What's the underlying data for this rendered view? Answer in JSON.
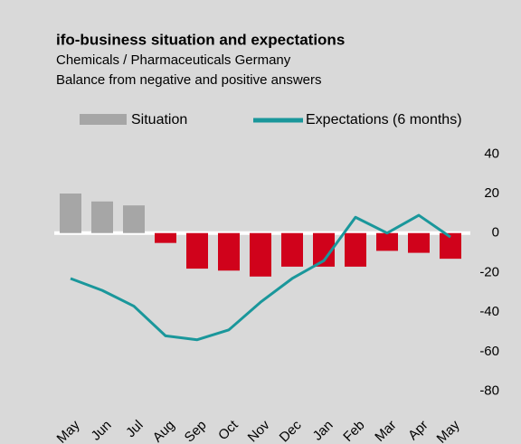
{
  "chart_data": {
    "type": "bar_line",
    "title": "ifo-business situation and expectations",
    "subtitle": [
      "Chemicals / Pharmaceuticals Germany",
      "Balance from negative and positive answers"
    ],
    "categories": [
      "May",
      "Jun",
      "Jul",
      "Aug",
      "Sep",
      "Oct",
      "Nov",
      "Dec",
      "Jan",
      "Feb",
      "Mar",
      "Apr",
      "May"
    ],
    "series": [
      {
        "name": "Situation",
        "type": "bar",
        "color": "#a6a6a6",
        "colors": [
          "#a6a6a6",
          "#a6a6a6",
          "#a6a6a6",
          "#d0021b",
          "#d0021b",
          "#d0021b",
          "#d0021b",
          "#d0021b",
          "#d0021b",
          "#d0021b",
          "#d0021b",
          "#d0021b",
          "#d0021b"
        ],
        "values": [
          20,
          16,
          14,
          -5,
          -18,
          -19,
          -22,
          -17,
          -17,
          -17,
          -9,
          -10,
          -13
        ]
      },
      {
        "name": "Expectations (6 months)",
        "type": "line",
        "color": "#1a979b",
        "values": [
          -23,
          -29,
          -37,
          -52,
          -54,
          -49,
          -35,
          -23,
          -14,
          8,
          0,
          9,
          -2
        ]
      }
    ],
    "ylim": [
      -90,
      45
    ],
    "yticks": [
      40,
      20,
      0,
      -20,
      -40,
      -60,
      -80
    ]
  }
}
